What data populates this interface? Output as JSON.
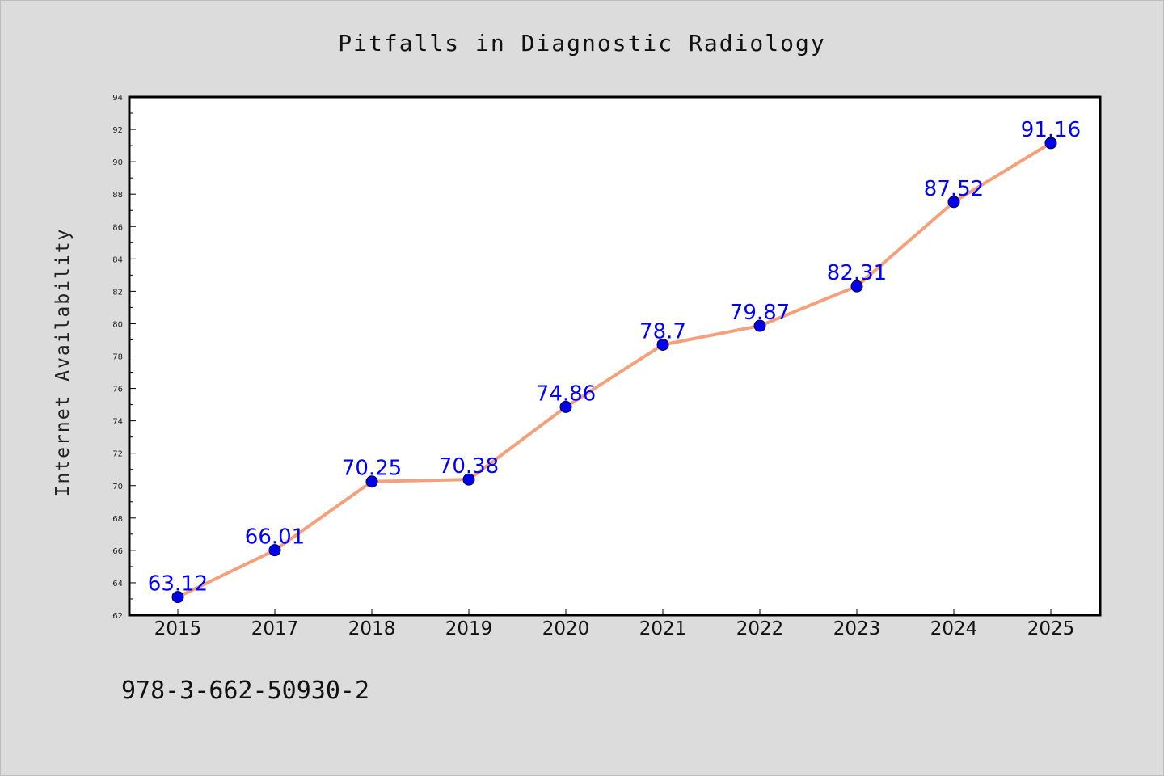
{
  "chart_data": {
    "type": "line",
    "title": "Pitfalls in Diagnostic Radiology",
    "xlabel": "",
    "ylabel": "Internet Availability",
    "categories": [
      "2015",
      "2017",
      "2018",
      "2019",
      "2020",
      "2021",
      "2022",
      "2023",
      "2024",
      "2025"
    ],
    "series": [
      {
        "values": [
          63.12,
          66.01,
          70.25,
          70.38,
          74.86,
          78.7,
          79.87,
          82.31,
          87.52,
          91.16
        ],
        "labels": [
          "63.12",
          "66.01",
          "70.25",
          "70.38",
          "74.86",
          "78.7",
          "79.87",
          "82.31",
          "87.52",
          "91.16"
        ],
        "line_color": "#f4a07a",
        "marker_color": "#0000ee"
      }
    ],
    "ylim": [
      62,
      94
    ],
    "yticks": [
      "62",
      "64",
      "66",
      "68",
      "70",
      "72",
      "74",
      "76",
      "78",
      "80",
      "82",
      "84",
      "86",
      "88",
      "90",
      "92",
      "94"
    ],
    "grid": false,
    "legend": "none"
  },
  "footer_text": "978-3-662-50930-2"
}
